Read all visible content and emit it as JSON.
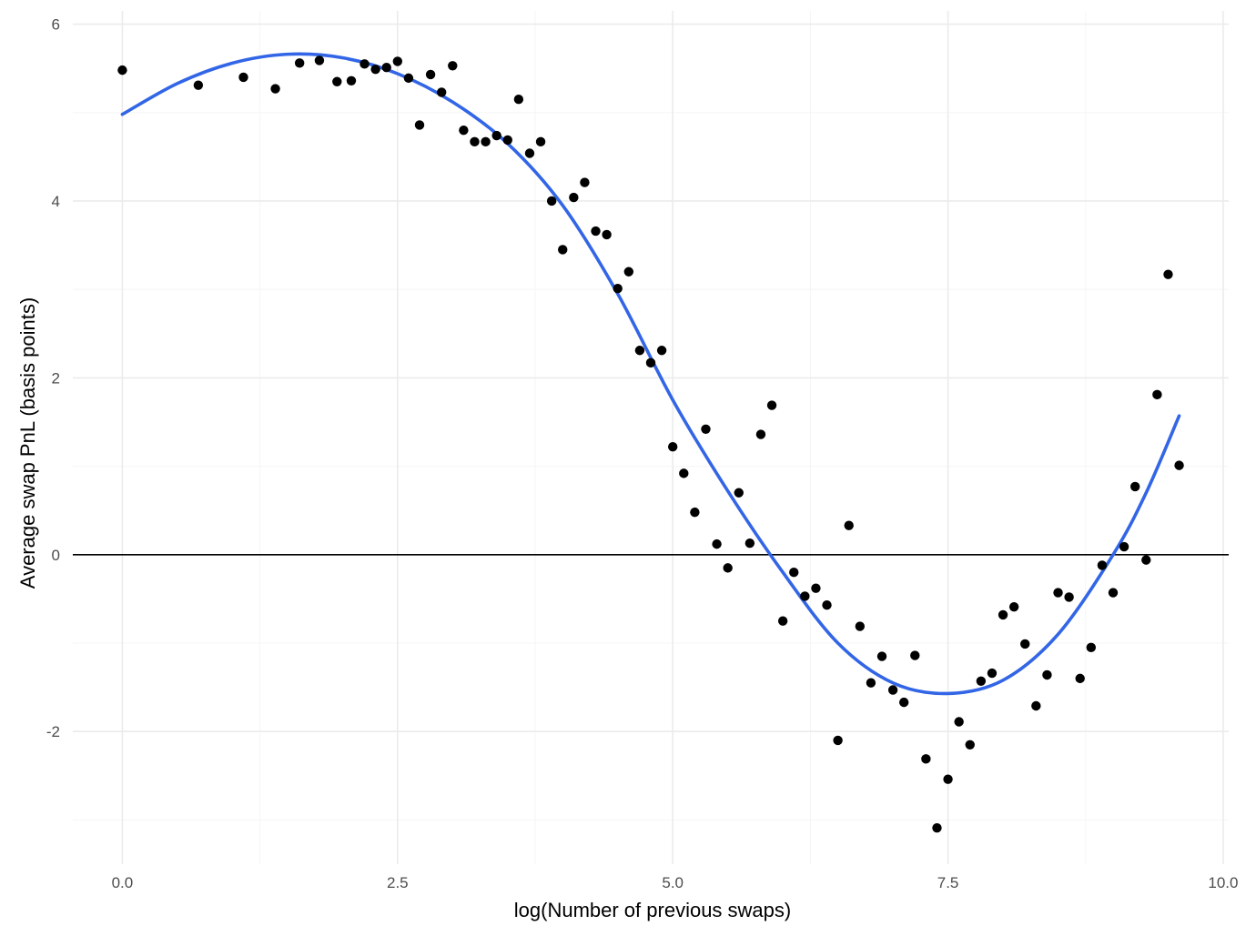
{
  "chart_data": {
    "type": "scatter",
    "title": "",
    "xlabel": "log(Number of previous swaps)",
    "ylabel": "Average swap PnL (basis points)",
    "xlim": [
      -0.45,
      10.05
    ],
    "ylim": [
      -3.5,
      6.15
    ],
    "x_ticks": [
      {
        "value": 0.0,
        "label": "0.0"
      },
      {
        "value": 2.5,
        "label": "2.5"
      },
      {
        "value": 5.0,
        "label": "5.0"
      },
      {
        "value": 7.5,
        "label": "7.5"
      },
      {
        "value": 10.0,
        "label": "10.0"
      }
    ],
    "y_ticks": [
      {
        "value": -2,
        "label": "-2"
      },
      {
        "value": 0,
        "label": "0"
      },
      {
        "value": 2,
        "label": "2"
      },
      {
        "value": 4,
        "label": "4"
      },
      {
        "value": 6,
        "label": "6"
      }
    ],
    "grid": true,
    "hline": 0,
    "colors": {
      "points": "#000000",
      "smooth": "#3366e6",
      "grid": "#ebebeb",
      "hline": "#000000"
    },
    "points": [
      [
        0.0,
        5.48
      ],
      [
        0.69,
        5.31
      ],
      [
        1.1,
        5.4
      ],
      [
        1.39,
        5.27
      ],
      [
        1.61,
        5.56
      ],
      [
        1.79,
        5.59
      ],
      [
        1.95,
        5.35
      ],
      [
        2.08,
        5.36
      ],
      [
        2.2,
        5.55
      ],
      [
        2.3,
        5.49
      ],
      [
        2.4,
        5.51
      ],
      [
        2.5,
        5.58
      ],
      [
        2.6,
        5.39
      ],
      [
        2.7,
        4.86
      ],
      [
        2.8,
        5.43
      ],
      [
        2.9,
        5.23
      ],
      [
        3.0,
        5.53
      ],
      [
        3.1,
        4.8
      ],
      [
        3.2,
        4.67
      ],
      [
        3.3,
        4.67
      ],
      [
        3.4,
        4.74
      ],
      [
        3.5,
        4.69
      ],
      [
        3.6,
        5.15
      ],
      [
        3.7,
        4.54
      ],
      [
        3.8,
        4.67
      ],
      [
        3.9,
        4.0
      ],
      [
        4.0,
        3.45
      ],
      [
        4.1,
        4.04
      ],
      [
        4.2,
        4.21
      ],
      [
        4.3,
        3.66
      ],
      [
        4.4,
        3.62
      ],
      [
        4.5,
        3.01
      ],
      [
        4.6,
        3.2
      ],
      [
        4.7,
        2.31
      ],
      [
        4.8,
        2.17
      ],
      [
        4.9,
        2.31
      ],
      [
        5.0,
        1.22
      ],
      [
        5.1,
        0.92
      ],
      [
        5.2,
        0.48
      ],
      [
        5.3,
        1.42
      ],
      [
        5.4,
        0.12
      ],
      [
        5.5,
        -0.15
      ],
      [
        5.6,
        0.7
      ],
      [
        5.7,
        0.13
      ],
      [
        5.8,
        1.36
      ],
      [
        5.9,
        1.69
      ],
      [
        6.0,
        -0.75
      ],
      [
        6.1,
        -0.2
      ],
      [
        6.2,
        -0.47
      ],
      [
        6.3,
        -0.38
      ],
      [
        6.4,
        -0.57
      ],
      [
        6.5,
        -2.1
      ],
      [
        6.6,
        0.33
      ],
      [
        6.7,
        -0.81
      ],
      [
        6.8,
        -1.45
      ],
      [
        6.9,
        -1.15
      ],
      [
        7.0,
        -1.53
      ],
      [
        7.1,
        -1.67
      ],
      [
        7.2,
        -1.14
      ],
      [
        7.3,
        -2.31
      ],
      [
        7.4,
        -3.09
      ],
      [
        7.5,
        -2.54
      ],
      [
        7.6,
        -1.89
      ],
      [
        7.7,
        -2.15
      ],
      [
        7.8,
        -1.43
      ],
      [
        7.9,
        -1.34
      ],
      [
        8.0,
        -0.68
      ],
      [
        8.1,
        -0.59
      ],
      [
        8.2,
        -1.01
      ],
      [
        8.3,
        -1.71
      ],
      [
        8.4,
        -1.36
      ],
      [
        8.5,
        -0.43
      ],
      [
        8.6,
        -0.48
      ],
      [
        8.7,
        -1.4
      ],
      [
        8.8,
        -1.05
      ],
      [
        8.9,
        -0.12
      ],
      [
        9.0,
        -0.43
      ],
      [
        9.1,
        0.09
      ],
      [
        9.2,
        0.77
      ],
      [
        9.3,
        -0.06
      ],
      [
        9.4,
        1.81
      ],
      [
        9.5,
        3.17
      ],
      [
        9.6,
        1.01
      ]
    ],
    "smooth_line": [
      [
        0.0,
        4.98
      ],
      [
        0.5,
        5.33
      ],
      [
        1.0,
        5.56
      ],
      [
        1.5,
        5.66
      ],
      [
        2.0,
        5.62
      ],
      [
        2.5,
        5.44
      ],
      [
        3.0,
        5.12
      ],
      [
        3.5,
        4.65
      ],
      [
        4.0,
        3.95
      ],
      [
        4.5,
        2.95
      ],
      [
        5.0,
        1.75
      ],
      [
        5.5,
        0.72
      ],
      [
        6.0,
        -0.2
      ],
      [
        6.5,
        -1.0
      ],
      [
        7.0,
        -1.45
      ],
      [
        7.5,
        -1.57
      ],
      [
        8.0,
        -1.42
      ],
      [
        8.5,
        -0.9
      ],
      [
        9.0,
        0.0
      ],
      [
        9.3,
        0.7
      ],
      [
        9.6,
        1.57
      ]
    ]
  }
}
